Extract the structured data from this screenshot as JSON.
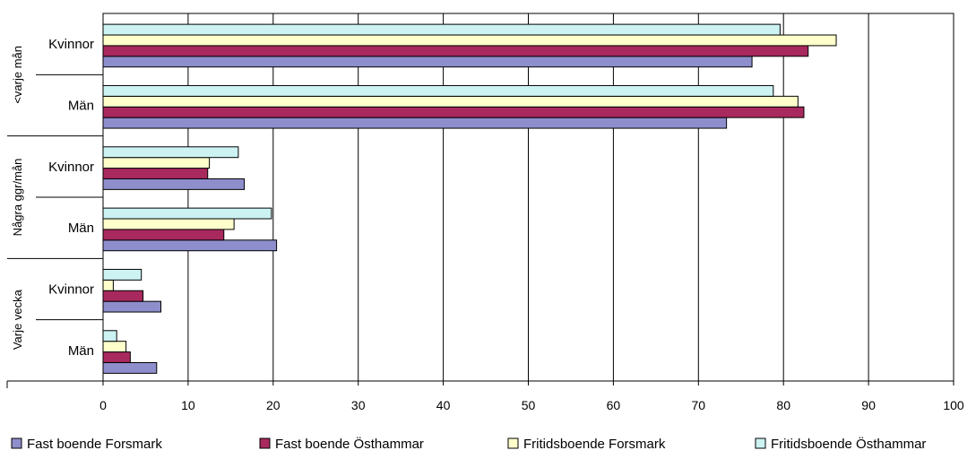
{
  "chart_data": {
    "type": "bar",
    "orientation": "horizontal",
    "groups": [
      {
        "label": "<varje mån",
        "subcategories": [
          "Kvinnor",
          "Män"
        ]
      },
      {
        "label": "Några ggr/mån",
        "subcategories": [
          "Kvinnor",
          "Män"
        ]
      },
      {
        "label": "Varje vecka",
        "subcategories": [
          "Kvinnor",
          "Män"
        ]
      }
    ],
    "categories": [
      "Kvinnor",
      "Män",
      "Kvinnor",
      "Män",
      "Kvinnor",
      "Män"
    ],
    "series": [
      {
        "name": "Fast boende Forsmark",
        "color": "#8E8ECC",
        "values": [
          76.3,
          73.3,
          16.6,
          20.4,
          6.8,
          6.3
        ]
      },
      {
        "name": "Fast boende Östhammar",
        "color": "#A8295E",
        "values": [
          82.9,
          82.4,
          12.3,
          14.2,
          4.7,
          3.2
        ]
      },
      {
        "name": "Fritidsboende Forsmark",
        "color": "#FFFFCC",
        "values": [
          86.2,
          81.7,
          12.5,
          15.4,
          1.2,
          2.7
        ]
      },
      {
        "name": "Fritidsboende Östhammar",
        "color": "#CCF2F2",
        "values": [
          79.6,
          78.8,
          15.9,
          19.8,
          4.5,
          1.6
        ]
      }
    ],
    "xlim": [
      0,
      100
    ],
    "xticks": [
      0,
      10,
      20,
      30,
      40,
      50,
      60,
      70,
      80,
      90,
      100
    ],
    "grid": true,
    "legend_position": "bottom",
    "title": "",
    "xlabel": "",
    "ylabel": ""
  }
}
